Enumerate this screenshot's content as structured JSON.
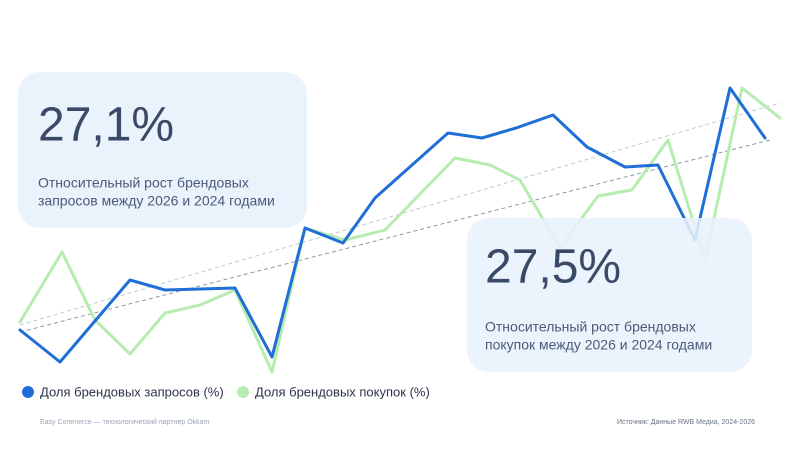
{
  "chart_data": {
    "type": "line",
    "xlim": [
      0,
      800
    ],
    "ylim": [
      0,
      340
    ],
    "series": [
      {
        "name": "Доля брендовых запросов (%)",
        "color": "#1f6fd6",
        "x": [
          20,
          60,
          130,
          165,
          235,
          272,
          305,
          343,
          375,
          448,
          482,
          516,
          553,
          587,
          625,
          658,
          695,
          730,
          765
        ],
        "values": [
          70,
          38,
          120,
          110,
          112,
          43,
          172,
          157,
          202,
          267,
          262,
          272,
          285,
          253,
          233,
          235,
          160,
          312,
          262
        ],
        "trend_x": [
          20,
          770
        ],
        "trend_values": [
          68,
          260
        ]
      },
      {
        "name": "Доля брендовых покупок (%)",
        "color": "#b6ecb0",
        "x": [
          20,
          62,
          95,
          130,
          165,
          200,
          235,
          272,
          305,
          345,
          385,
          455,
          490,
          520,
          560,
          598,
          632,
          668,
          705,
          742,
          780
        ],
        "values": [
          78,
          148,
          80,
          46,
          87,
          95,
          110,
          28,
          172,
          160,
          170,
          242,
          235,
          220,
          152,
          204,
          210,
          260,
          140,
          312,
          282
        ],
        "trend_x": [
          20,
          780
        ],
        "trend_values": [
          75,
          297
        ]
      }
    ],
    "annotations": [
      {
        "value": "27,1%",
        "text": [
          "Относительный рост брендовых",
          "запросов между 2026 и 2024 годами"
        ]
      },
      {
        "value": "27,5%",
        "text": [
          "Относительный рост брендовых",
          "покупок между 2026 и 2024 годами"
        ]
      }
    ],
    "footer_left": "Easy Commerce — технологический партнер Okkam",
    "source": "Источник: Данные RWB Медиа, 2024-2026"
  }
}
